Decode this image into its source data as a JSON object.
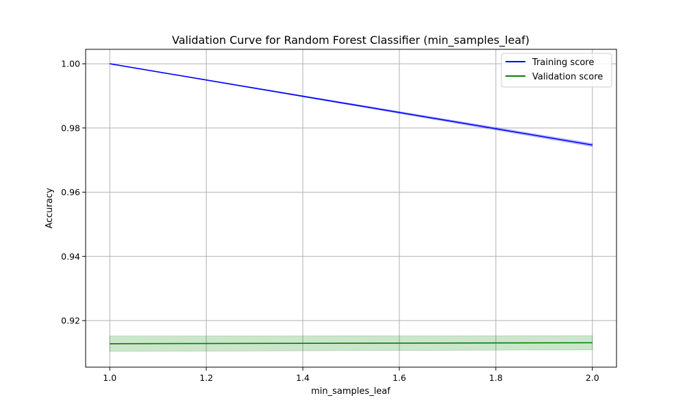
{
  "chart_data": {
    "type": "line",
    "title": "Validation Curve for Random Forest Classifier (min_samples_leaf)",
    "xlabel": "min_samples_leaf",
    "ylabel": "Accuracy",
    "xlim": [
      0.95,
      2.05
    ],
    "ylim": [
      0.9055,
      1.0045
    ],
    "x_ticks": [
      1.0,
      1.2,
      1.4,
      1.6,
      1.8,
      2.0
    ],
    "x_tick_labels": [
      "1.0",
      "1.2",
      "1.4",
      "1.6",
      "1.8",
      "2.0"
    ],
    "y_ticks": [
      0.92,
      0.94,
      0.96,
      0.98,
      1.0
    ],
    "y_tick_labels": [
      "0.92",
      "0.94",
      "0.96",
      "0.98",
      "1.00"
    ],
    "grid": true,
    "legend_position": "top-right",
    "x": [
      1.0,
      2.0
    ],
    "series": [
      {
        "name": "Training score",
        "color": "#0000ff",
        "values": [
          1.0,
          0.9747
        ],
        "band_lower": [
          1.0,
          0.9742
        ],
        "band_upper": [
          1.0,
          0.9752
        ]
      },
      {
        "name": "Validation score",
        "color": "#008000",
        "values": [
          0.9128,
          0.9131
        ],
        "band_lower": [
          0.9104,
          0.9109
        ],
        "band_upper": [
          0.9152,
          0.9153
        ]
      }
    ]
  }
}
